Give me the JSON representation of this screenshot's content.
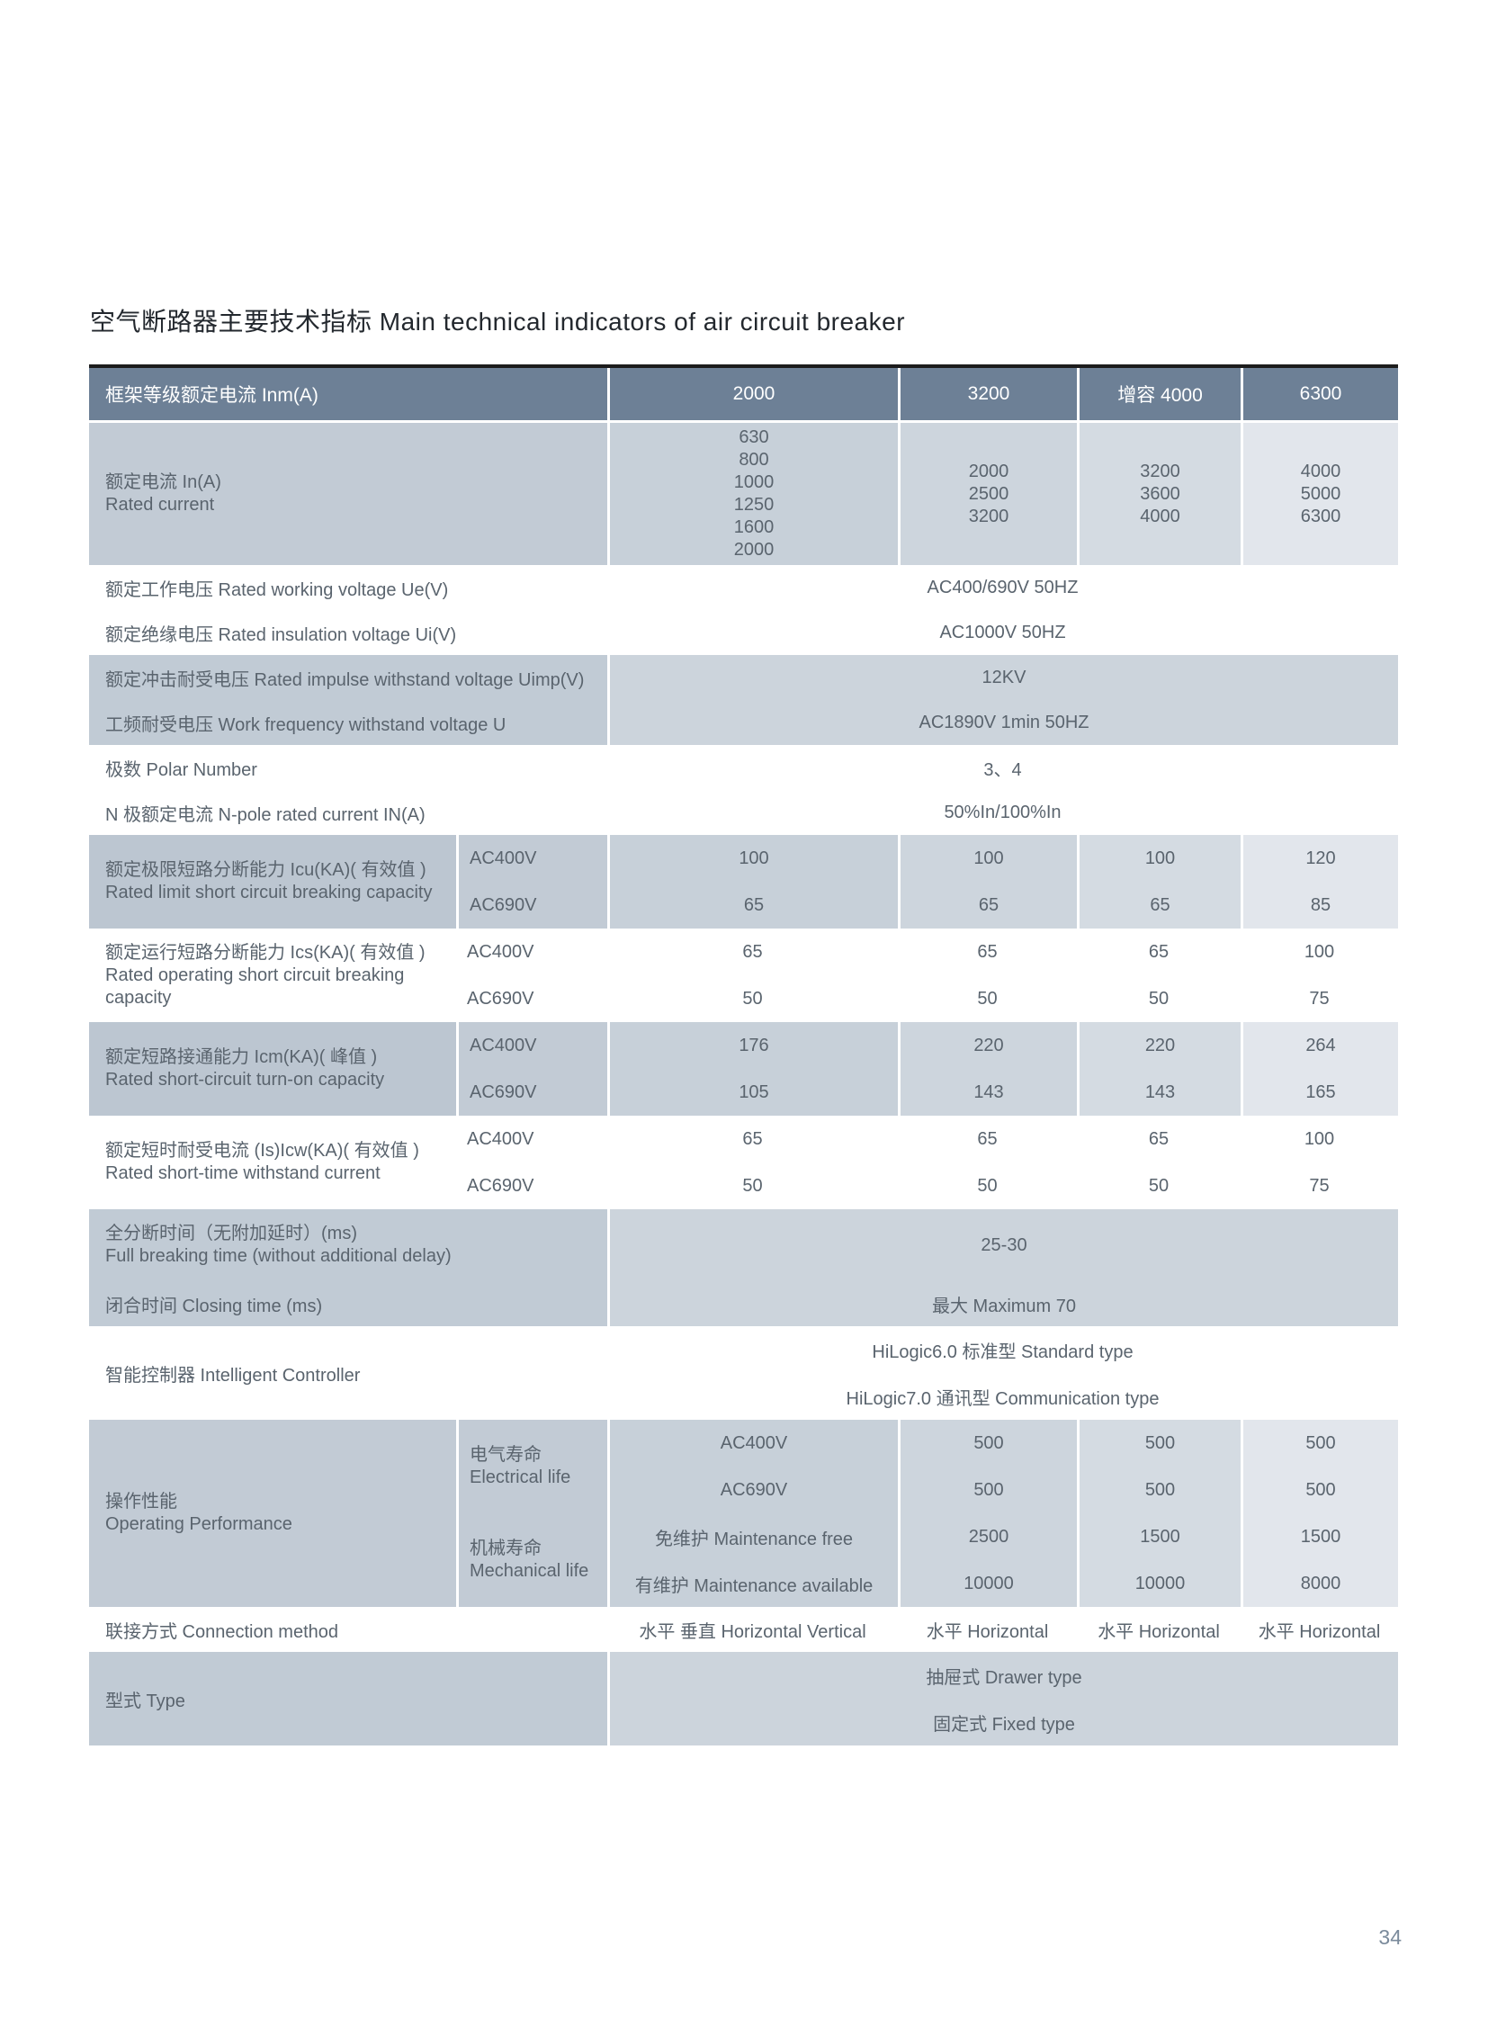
{
  "page": {
    "title": "空气断路器主要技术指标 Main technical indicators of air circuit breaker",
    "page_number": "34"
  },
  "colors": {
    "header_bg": "#6d8096",
    "header_text": "#ffffff",
    "body_text": "#5a646e",
    "title_text": "#23282e",
    "shade_label": "#bcc6d1",
    "shade_sub": "#c2cbd5",
    "shade_col_2000": "#c7d0d9",
    "shade_col_3200": "#cdd5dd",
    "shade_col_4000": "#d4dbe2",
    "shade_col_6300": "#e2e6ec",
    "two_col_label": "#c1cbd5",
    "two_col_value": "#ccd4dc",
    "table_top_border": "#1c1c1c",
    "page_number_text": "#7b8b9c"
  },
  "table": {
    "header": {
      "label": "框架等级额定电流 Inm(A)",
      "columns": [
        "2000",
        "3200",
        "增容 4000",
        "6300"
      ]
    },
    "rated_current": {
      "label_zh": "额定电流 In(A)",
      "label_en": "Rated current",
      "col2000": [
        "630",
        "800",
        "1000",
        "1250",
        "1600",
        "2000"
      ],
      "col3200": [
        "2000",
        "2500",
        "3200"
      ],
      "col4000": [
        "3200",
        "3600",
        "4000"
      ],
      "col6300": [
        "4000",
        "5000",
        "6300"
      ]
    },
    "simple_rows": [
      {
        "label": "额定工作电压 Rated working voltage Ue(V)",
        "value": "AC400/690V 50HZ"
      },
      {
        "label": "额定绝缘电压 Rated insulation voltage Ui(V)",
        "value": "AC1000V 50HZ"
      },
      {
        "label": "额定冲击耐受电压 Rated impulse withstand voltage Uimp(V)",
        "value": "12KV"
      },
      {
        "label": "工频耐受电压 Work frequency withstand voltage U",
        "value": "AC1890V 1min 50HZ"
      },
      {
        "label": "极数 Polar Number",
        "value": "3、4"
      },
      {
        "label": "N 极额定电流 N-pole rated current IN(A)",
        "value": "50%In/100%In"
      }
    ],
    "capacity_blocks": [
      {
        "label_zh": "额定极限短路分断能力 Icu(KA)( 有效值 )",
        "label_en": "Rated limit short circuit breaking capacity",
        "rows": [
          {
            "sub": "AC400V",
            "values": [
              "100",
              "100",
              "100",
              "120"
            ]
          },
          {
            "sub": "AC690V",
            "values": [
              "65",
              "65",
              "65",
              "85"
            ]
          }
        ]
      },
      {
        "label_zh": "额定运行短路分断能力 Ics(KA)( 有效值 )",
        "label_en": "Rated operating short circuit breaking capacity",
        "rows": [
          {
            "sub": "AC400V",
            "values": [
              "65",
              "65",
              "65",
              "100"
            ]
          },
          {
            "sub": "AC690V",
            "values": [
              "50",
              "50",
              "50",
              "75"
            ]
          }
        ]
      },
      {
        "label_zh": "额定短路接通能力 Icm(KA)( 峰值 )",
        "label_en": "Rated short-circuit turn-on capacity",
        "rows": [
          {
            "sub": "AC400V",
            "values": [
              "176",
              "220",
              "220",
              "264"
            ]
          },
          {
            "sub": "AC690V",
            "values": [
              "105",
              "143",
              "143",
              "165"
            ]
          }
        ]
      },
      {
        "label_zh": "额定短时耐受电流 (Is)Icw(KA)( 有效值 )",
        "label_en": "Rated short-time withstand current",
        "rows": [
          {
            "sub": "AC400V",
            "values": [
              "65",
              "65",
              "65",
              "100"
            ]
          },
          {
            "sub": "AC690V",
            "values": [
              "50",
              "50",
              "50",
              "75"
            ]
          }
        ]
      }
    ],
    "breaking_time": {
      "row1_label_zh": "全分断时间（无附加延时）(ms)",
      "row1_label_en": "Full breaking time (without additional delay)",
      "row1_value": "25-30",
      "row2_label": "闭合时间 Closing time (ms)",
      "row2_value": "最大 Maximum 70"
    },
    "controller": {
      "label": "智能控制器 Intelligent Controller",
      "value1": "HiLogic6.0 标准型 Standard type",
      "value2": "HiLogic7.0 通讯型 Communication type"
    },
    "operating": {
      "label_zh": "操作性能",
      "label_en": "Operating Performance",
      "electrical_label": "电气寿命 Electrical life",
      "mechanical_label": "机械寿命 Mechanical life",
      "rows": [
        {
          "name": "AC400V",
          "values": [
            "500",
            "500",
            "500"
          ]
        },
        {
          "name": "AC690V",
          "values": [
            "500",
            "500",
            "500"
          ]
        },
        {
          "name": "免维护 Maintenance free",
          "values": [
            "2500",
            "1500",
            "1500"
          ]
        },
        {
          "name": "有维护 Maintenance available",
          "values": [
            "10000",
            "10000",
            "8000"
          ]
        }
      ]
    },
    "connection": {
      "label": "联接方式 Connection method",
      "values": [
        "水平 垂直 Horizontal Vertical",
        "水平 Horizontal",
        "水平 Horizontal",
        "水平 Horizontal"
      ]
    },
    "type_row": {
      "label": "型式 Type",
      "value1": "抽屉式 Drawer type",
      "value2": "固定式 Fixed type"
    }
  }
}
